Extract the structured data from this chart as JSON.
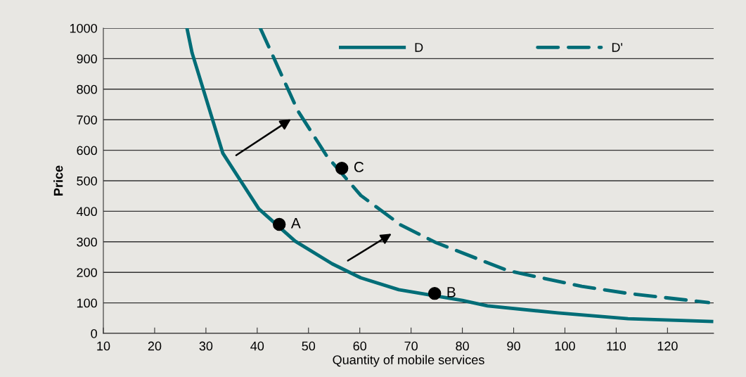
{
  "chart_data": {
    "type": "line",
    "xlabel": "Quantity of mobile services",
    "ylabel": "Price",
    "xlim": [
      10,
      129
    ],
    "xticks": [
      10,
      20,
      30,
      40,
      50,
      60,
      70,
      80,
      90,
      100,
      110,
      120
    ],
    "ylim": [
      0,
      1000
    ],
    "yticks": [
      0,
      100,
      200,
      300,
      400,
      500,
      600,
      700,
      800,
      900,
      1000
    ],
    "grid": "y",
    "legend": "top",
    "marker": "none",
    "series": [
      {
        "name": "D",
        "color": "#006d77",
        "line_style": "solid",
        "x": [
          26.3,
          27.3,
          33.3,
          40.3,
          47.4,
          54.6,
          60.2,
          67.6,
          80,
          84.9,
          98.6,
          112.3,
          128.6
        ],
        "values": [
          1000,
          919,
          590,
          408,
          302,
          228,
          182,
          143,
          108,
          90,
          67,
          48,
          39
        ]
      },
      {
        "name": "D'",
        "color": "#006d77",
        "line_style": "dashed",
        "x": [
          40.6,
          47.9,
          53.6,
          60.2,
          68,
          74.9,
          89,
          103.3,
          112.3,
          128
        ],
        "values": [
          1000,
          730,
          580,
          452,
          355,
          297,
          205,
          154,
          131,
          101
        ]
      },
      {
        "type": "scatter",
        "color": "#000000",
        "marker": "circle",
        "x": [
          44.3,
          74.6,
          56.5
        ],
        "values": [
          357,
          131,
          541
        ]
      }
    ],
    "annotations": [
      {
        "text": "A",
        "x": 44.3,
        "y": 357
      },
      {
        "text": "B",
        "x": 74.6,
        "y": 131
      },
      {
        "text": "C",
        "x": 56.5,
        "y": 541
      }
    ]
  }
}
